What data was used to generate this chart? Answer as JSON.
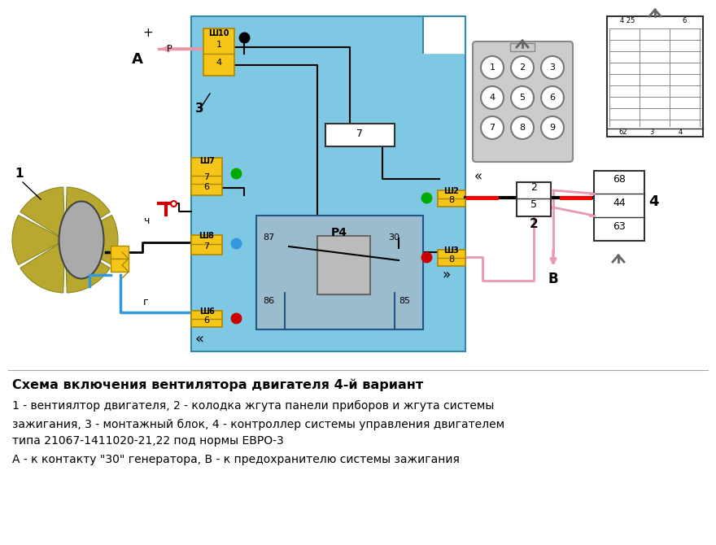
{
  "bg_color": "#ffffff",
  "diagram_bg": "#7EC8E3",
  "yellow_color": "#F5C518",
  "title_text": "Схема включения вентилятора двигателя 4-й вариант",
  "desc_line1": "1 - вентиялтор двигателя, 2 - колодка жгута панели приборов и жгута системы",
  "desc_line2": "зажигания, 3 - монтажный блок, 4 - контроллер системы управления двигателем",
  "desc_line3": "типа 21067-1411020-21,22 под нормы ЕВРО-3",
  "desc_line4": "А - к контакту \"30\" генератора, В - к предохранителю системы зажигания",
  "figsize": [
    8.8,
    6.7
  ],
  "dpi": 100
}
